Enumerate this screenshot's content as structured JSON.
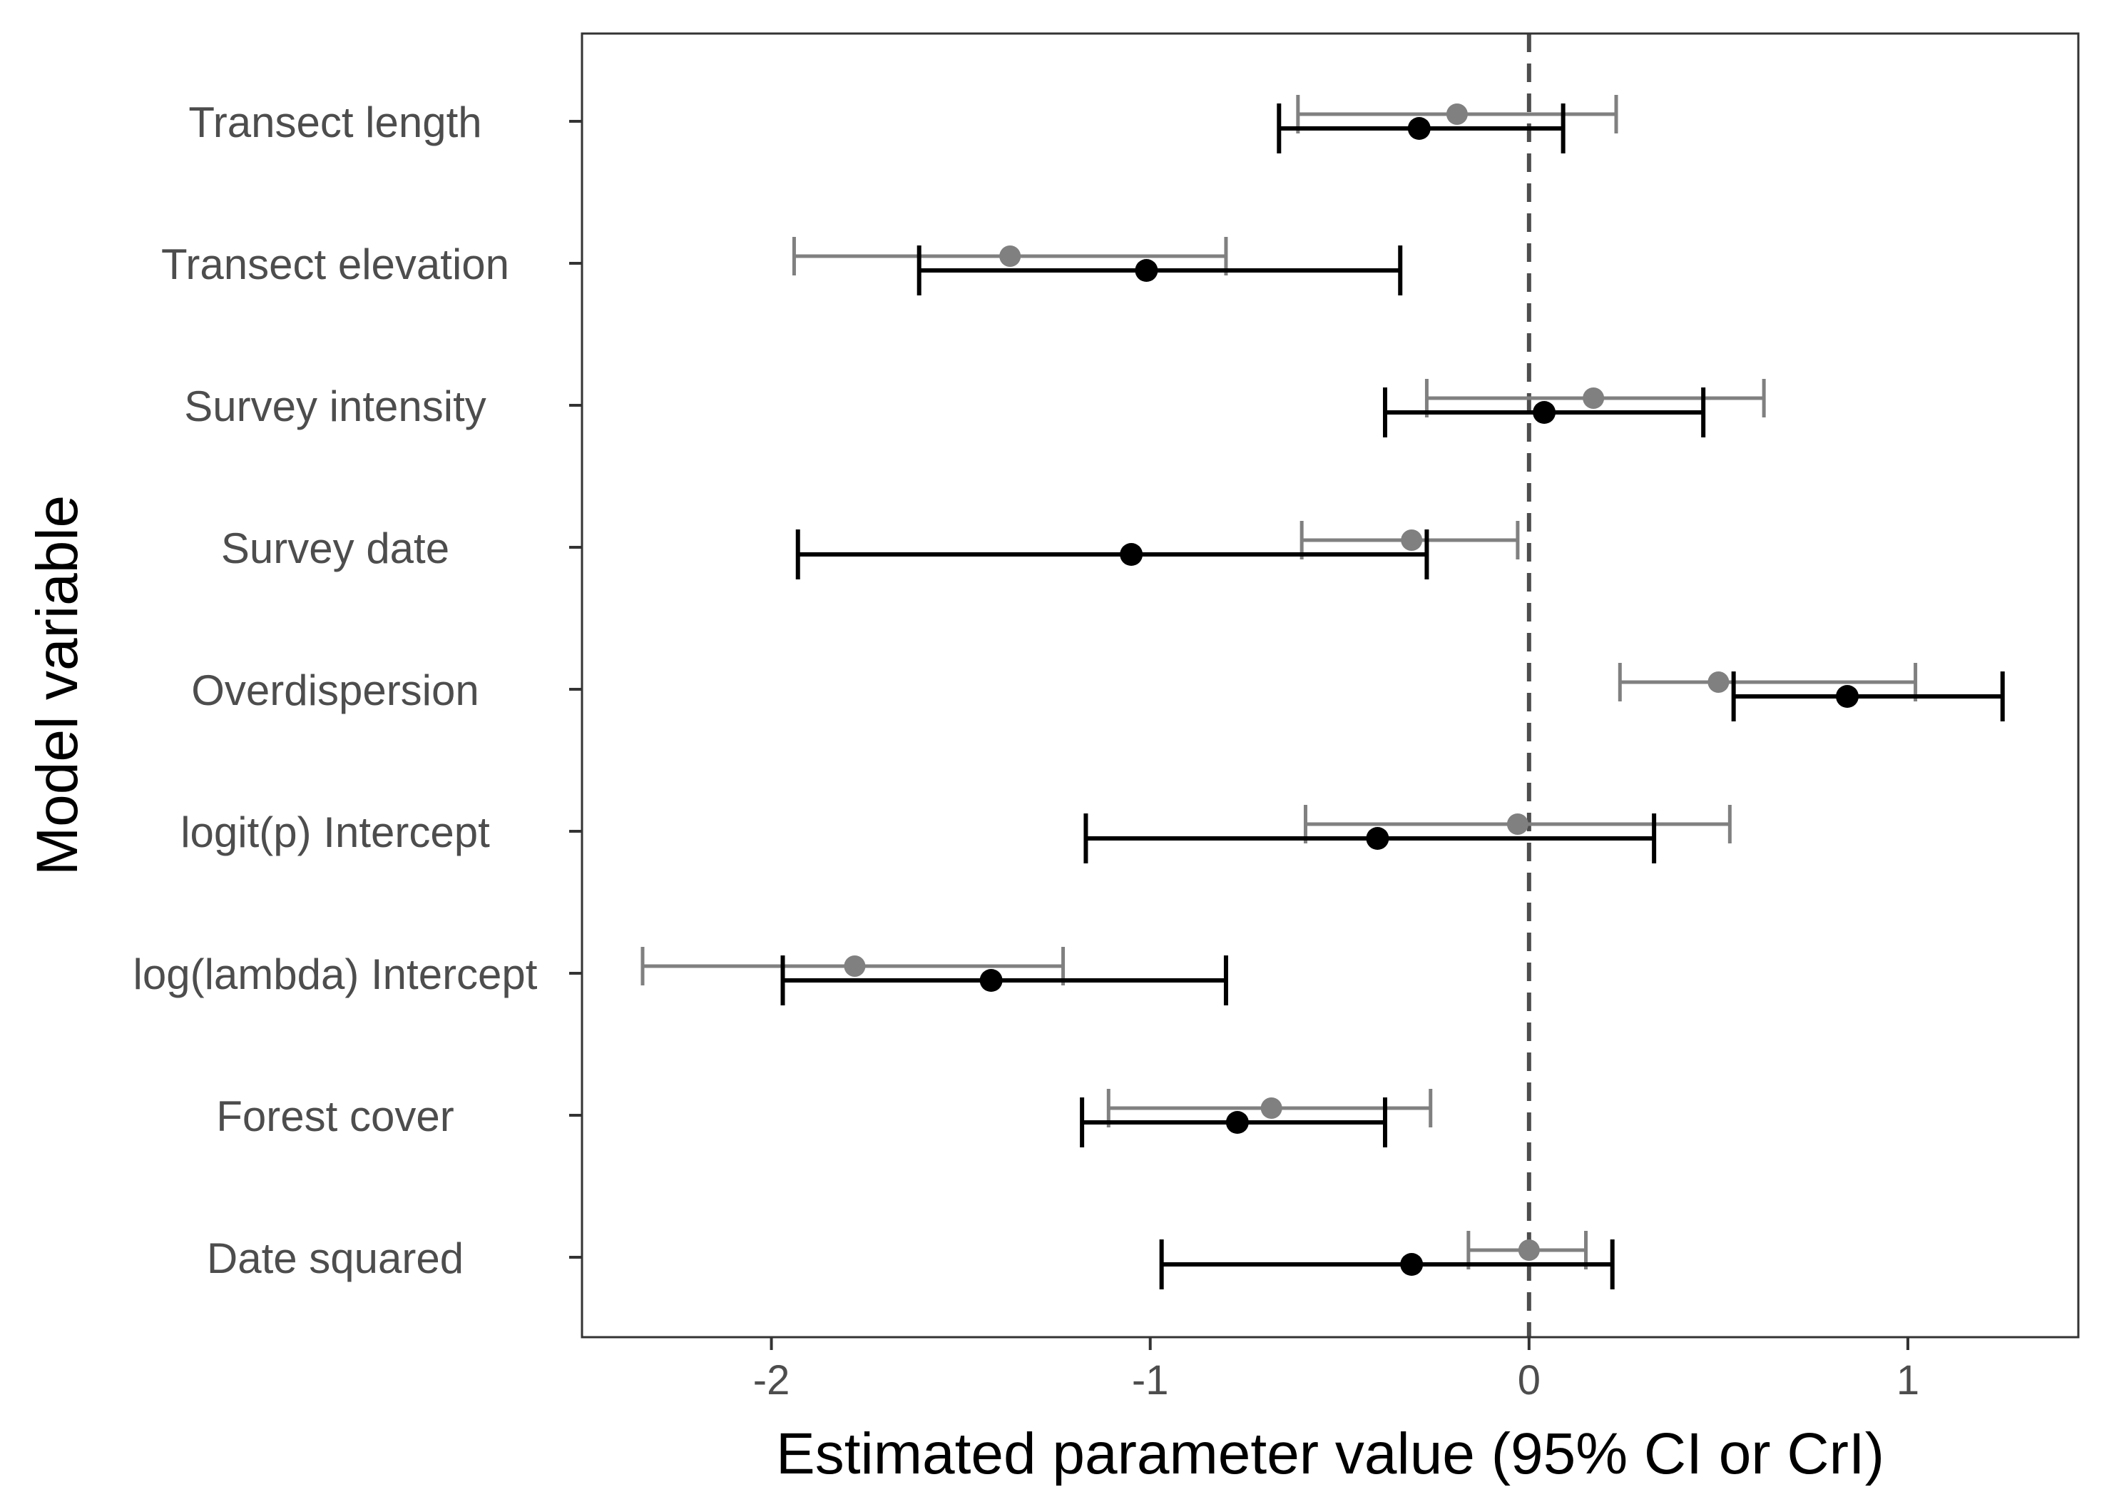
{
  "chart_data": {
    "type": "forest",
    "title": "",
    "xlabel": "Estimated parameter value (95% CI or CrI)",
    "ylabel": "Model variable",
    "xlim": [
      -2.5,
      1.45
    ],
    "xticks": [
      -2,
      -1,
      0,
      1
    ],
    "xtick_labels": [
      "-2",
      "-1",
      "0",
      "1"
    ],
    "reference_line": 0,
    "categories": [
      "Transect length",
      "Transect elevation",
      "Survey intensity",
      "Survey date",
      "Overdispersion",
      "logit(p) Intercept",
      "log(lambda) Intercept",
      "Forest cover",
      "Date squared"
    ],
    "series": [
      {
        "name": "grey estimates",
        "color": "#808080",
        "points": [
          {
            "estimate": -0.19,
            "lower": -0.61,
            "upper": 0.23
          },
          {
            "estimate": -1.37,
            "lower": -1.94,
            "upper": -0.8
          },
          {
            "estimate": 0.17,
            "lower": -0.27,
            "upper": 0.62
          },
          {
            "estimate": -0.31,
            "lower": -0.6,
            "upper": -0.03
          },
          {
            "estimate": 0.5,
            "lower": 0.24,
            "upper": 1.02
          },
          {
            "estimate": -0.03,
            "lower": -0.59,
            "upper": 0.53
          },
          {
            "estimate": -1.78,
            "lower": -2.34,
            "upper": -1.23
          },
          {
            "estimate": -0.68,
            "lower": -1.11,
            "upper": -0.26
          },
          {
            "estimate": 0.0,
            "lower": -0.16,
            "upper": 0.15
          }
        ]
      },
      {
        "name": "black estimates",
        "color": "#000000",
        "points": [
          {
            "estimate": -0.29,
            "lower": -0.66,
            "upper": 0.09
          },
          {
            "estimate": -1.01,
            "lower": -1.61,
            "upper": -0.34
          },
          {
            "estimate": 0.04,
            "lower": -0.38,
            "upper": 0.46
          },
          {
            "estimate": -1.05,
            "lower": -1.93,
            "upper": -0.27
          },
          {
            "estimate": 0.84,
            "lower": 0.54,
            "upper": 1.25
          },
          {
            "estimate": -0.4,
            "lower": -1.17,
            "upper": 0.33
          },
          {
            "estimate": -1.42,
            "lower": -1.97,
            "upper": -0.8
          },
          {
            "estimate": -0.77,
            "lower": -1.18,
            "upper": -0.38
          },
          {
            "estimate": -0.31,
            "lower": -0.97,
            "upper": 0.22
          }
        ]
      }
    ]
  }
}
